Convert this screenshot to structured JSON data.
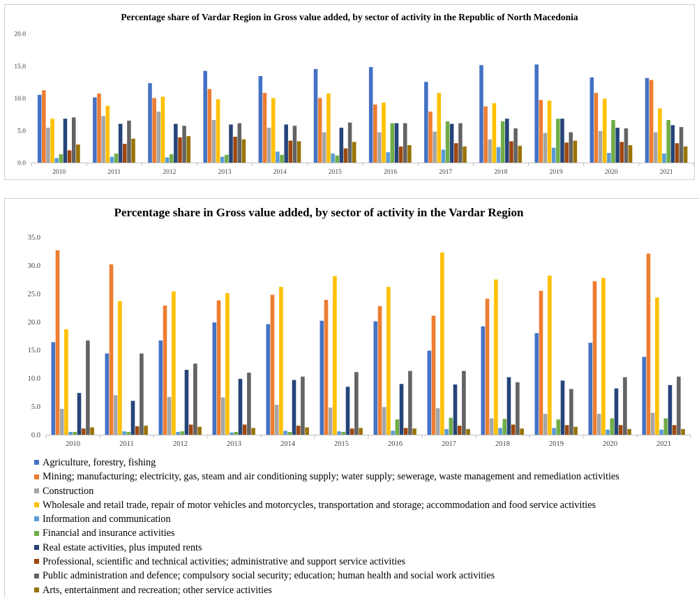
{
  "chart_data": [
    {
      "type": "bar",
      "title": "Percentage share of Vardar  Region in Gross value added, by sector of activity in the Republic of North Macedonia",
      "ylim": [
        0,
        20
      ],
      "yticks": [
        "0.0",
        "5.0",
        "10.0",
        "15.0",
        "20.0"
      ],
      "grid": false,
      "legend": "none",
      "categories": [
        "2010",
        "2011",
        "2012",
        "2013",
        "2014",
        "2015",
        "2016",
        "2017",
        "2018",
        "2019",
        "2020",
        "2021"
      ],
      "series": [
        {
          "name": "Agriculture, forestry, fishing",
          "color": "#4472C4",
          "values": [
            10.5,
            10.1,
            12.3,
            14.2,
            13.4,
            14.5,
            14.8,
            12.5,
            15.1,
            15.2,
            13.2,
            13.1
          ]
        },
        {
          "name": "Mining; manufacturing; electricity, gas, steam and air conditioning supply; water supply; sewerage, waste management and remediation activities",
          "color": "#ED7D31",
          "values": [
            11.2,
            10.7,
            10.0,
            11.4,
            10.8,
            10.0,
            9.0,
            7.9,
            8.7,
            9.7,
            10.8,
            12.8
          ]
        },
        {
          "name": "Construction",
          "color": "#A5A5A5",
          "values": [
            5.4,
            7.2,
            7.9,
            6.6,
            5.4,
            4.7,
            4.7,
            4.8,
            3.6,
            4.6,
            4.9,
            4.7
          ]
        },
        {
          "name": "Wholesale and retail trade, repair of motor vehicles and motorcycles, transportation and storage; accommodation and food service activities",
          "color": "#FFC000",
          "values": [
            6.8,
            8.8,
            10.2,
            9.8,
            10.0,
            10.7,
            9.3,
            10.8,
            9.2,
            9.6,
            9.9,
            8.4
          ]
        },
        {
          "name": "Information and communication",
          "color": "#5B9BD5",
          "values": [
            0.7,
            0.9,
            0.8,
            0.9,
            1.7,
            1.4,
            1.6,
            2.0,
            2.4,
            2.3,
            1.5,
            1.4
          ]
        },
        {
          "name": "Financial and insurance activities",
          "color": "#70AD47",
          "values": [
            1.3,
            1.4,
            1.3,
            1.2,
            1.2,
            1.1,
            6.1,
            6.4,
            6.4,
            6.8,
            6.6,
            6.6
          ]
        },
        {
          "name": "Real estate activities, plus imputed rents",
          "color": "#264478",
          "values": [
            6.8,
            6.0,
            6.0,
            5.9,
            5.9,
            5.4,
            6.1,
            6.0,
            6.8,
            6.8,
            5.4,
            5.8
          ]
        },
        {
          "name": "Professional, scientific and technical activities; administrative and support service activities",
          "color": "#9E480E",
          "values": [
            1.9,
            2.9,
            3.9,
            4.0,
            3.4,
            2.2,
            2.5,
            3.0,
            3.3,
            3.1,
            3.2,
            3.0
          ]
        },
        {
          "name": "Public administration and defence; compulsory social security; education; human health and social work activities",
          "color": "#636363",
          "values": [
            7.0,
            6.5,
            5.7,
            6.1,
            5.7,
            6.2,
            6.1,
            6.1,
            5.3,
            4.7,
            5.3,
            5.5
          ]
        },
        {
          "name": "Arts, entertainment and recreation; other service activities",
          "color": "#997300",
          "values": [
            2.8,
            3.7,
            4.1,
            3.6,
            3.3,
            3.2,
            2.7,
            2.5,
            2.6,
            3.4,
            2.7,
            2.5
          ]
        }
      ]
    },
    {
      "type": "bar",
      "title": "Percentage share in Gross value added, by sector of activity in the Vardar Region",
      "ylim": [
        0,
        35
      ],
      "yticks": [
        "0.0",
        "5.0",
        "10.0",
        "15.0",
        "20.0",
        "25.0",
        "30.0",
        "35.0"
      ],
      "grid": false,
      "legend": "bottom",
      "categories": [
        "2010",
        "2011",
        "2012",
        "2013",
        "2014",
        "2015",
        "2016",
        "2017",
        "2018",
        "2019",
        "2020",
        "2021"
      ],
      "series": [
        {
          "name": "Agriculture, forestry, fishing",
          "color": "#4472C4",
          "values": [
            16.4,
            14.4,
            16.7,
            19.9,
            19.6,
            20.2,
            20.1,
            14.9,
            19.2,
            18.0,
            16.3,
            13.8
          ]
        },
        {
          "name": "Mining; manufacturing; electricity, gas, steam and air conditioning supply; water supply; sewerage, waste management and remediation activities",
          "color": "#ED7D31",
          "values": [
            32.7,
            30.2,
            22.9,
            23.8,
            24.8,
            23.9,
            22.8,
            21.1,
            24.1,
            25.5,
            27.2,
            32.1
          ]
        },
        {
          "name": "Construction",
          "color": "#A5A5A5",
          "values": [
            4.6,
            7.0,
            6.7,
            6.6,
            5.3,
            4.8,
            4.9,
            4.7,
            2.9,
            3.7,
            3.7,
            3.9
          ]
        },
        {
          "name": "Wholesale and retail trade, repair of motor vehicles and motorcycles, transportation and storage; accommodation and food service activities",
          "color": "#FFC000",
          "values": [
            18.7,
            23.7,
            25.4,
            25.1,
            26.2,
            28.1,
            26.2,
            32.3,
            27.5,
            28.2,
            27.8,
            24.3
          ]
        },
        {
          "name": "Information and communication",
          "color": "#5B9BD5",
          "values": [
            0.5,
            0.6,
            0.5,
            0.4,
            0.7,
            0.6,
            0.7,
            1.0,
            1.2,
            1.2,
            0.9,
            0.9
          ]
        },
        {
          "name": "Financial and insurance activities",
          "color": "#70AD47",
          "values": [
            0.5,
            0.5,
            0.6,
            0.5,
            0.5,
            0.5,
            2.7,
            3.0,
            2.8,
            2.7,
            2.9,
            2.9
          ]
        },
        {
          "name": "Real estate activities, plus imputed rents",
          "color": "#264478",
          "values": [
            7.4,
            6.0,
            11.5,
            9.9,
            9.7,
            8.5,
            9.0,
            8.9,
            10.2,
            9.6,
            8.2,
            8.8
          ]
        },
        {
          "name": "Professional, scientific and technical activities; administrative and support service activities",
          "color": "#9E480E",
          "values": [
            1.1,
            1.5,
            1.8,
            1.8,
            1.6,
            1.1,
            1.2,
            1.6,
            1.8,
            1.7,
            1.7,
            1.7
          ]
        },
        {
          "name": "Public administration and defence; compulsory social security; education; human health and social work activities",
          "color": "#636363",
          "values": [
            16.7,
            14.4,
            12.6,
            11.0,
            10.3,
            11.1,
            11.3,
            11.3,
            9.3,
            8.1,
            10.2,
            10.3
          ]
        },
        {
          "name": "Arts, entertainment and recreation; other service activities",
          "color": "#997300",
          "values": [
            1.3,
            1.6,
            1.4,
            1.2,
            1.3,
            1.2,
            1.1,
            1.0,
            1.1,
            1.4,
            1.0,
            1.0
          ]
        }
      ]
    }
  ]
}
